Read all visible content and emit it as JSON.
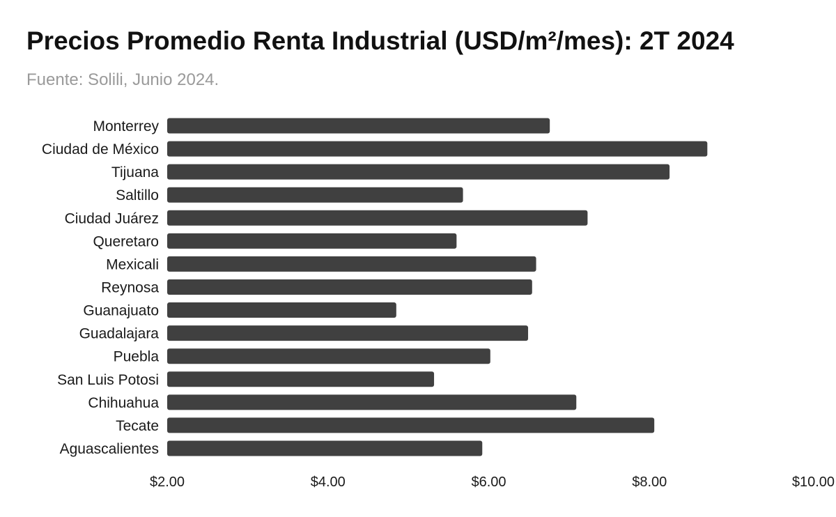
{
  "colors": {
    "bar": "#404040",
    "title": "#111111",
    "subtitle": "#9a9a9a",
    "text": "#1a1a1a"
  },
  "chart_data": {
    "type": "bar",
    "orientation": "horizontal",
    "title": "Precios Promedio Renta Industrial (USD/m²/mes): 2T 2024",
    "subtitle": "Fuente: Solili, Junio 2024.",
    "categories": [
      "Monterrey",
      "Ciudad de México",
      "Tijuana",
      "Saltillo",
      "Ciudad Juárez",
      "Queretaro",
      "Mexicali",
      "Reynosa",
      "Guanajuato",
      "Guadalajara",
      "Puebla",
      "San Luis Potosi",
      "Chihuahua",
      "Tecate",
      "Aguascalientes"
    ],
    "values": [
      6.76,
      8.72,
      8.25,
      5.68,
      7.23,
      5.6,
      6.59,
      6.54,
      4.85,
      6.49,
      6.02,
      5.32,
      7.09,
      8.06,
      5.92
    ],
    "xlim": [
      2,
      10
    ],
    "xticks": [
      2,
      4,
      6,
      8,
      10
    ],
    "xtick_labels": [
      "$2.00",
      "$4.00",
      "$6.00",
      "$8.00",
      "$10.00"
    ],
    "grid": false,
    "legend": "none"
  }
}
